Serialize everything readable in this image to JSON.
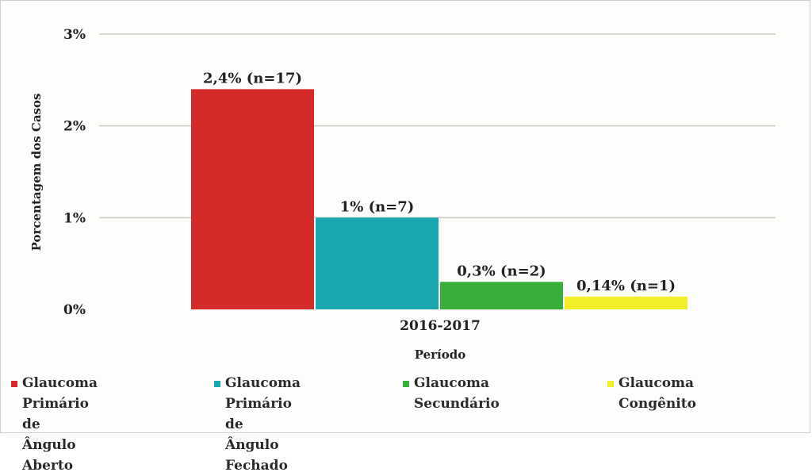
{
  "chart_data": {
    "type": "bar",
    "title": "",
    "ylabel": "Porcentagem dos Casos",
    "xlabel": "Período",
    "categories": [
      "2016-2017"
    ],
    "ylim": [
      0,
      3
    ],
    "yticks": [
      "0%",
      "1%",
      "2%",
      "3%"
    ],
    "grid": true,
    "legend_position": "bottom",
    "series": [
      {
        "name": "Glaucoma Primário de Ângulo Aberto",
        "values": [
          2.4
        ],
        "data_label": "2,4% (n=17)",
        "color": "#d42a2a"
      },
      {
        "name": "Glaucoma Primário de Ângulo Fechado",
        "values": [
          1.0
        ],
        "data_label": "1% (n=7)",
        "color": "#1aa8b0"
      },
      {
        "name": "Glaucoma Secundário",
        "values": [
          0.3
        ],
        "data_label": "0,3% (n=2)",
        "color": "#3aae3a"
      },
      {
        "name": "Glaucoma Congênito",
        "values": [
          0.14
        ],
        "data_label": "0,14% (n=1)",
        "color": "#f2ee2a"
      }
    ]
  },
  "legend": [
    {
      "label": "Glaucoma Primário\nde Ângulo Aberto",
      "color": "#d42a2a"
    },
    {
      "label": "Glaucoma Primário\nde Ângulo Fechado",
      "color": "#1aa8b0"
    },
    {
      "label": "Glaucoma Secundário",
      "color": "#3aae3a"
    },
    {
      "label": "Glaucoma Congênito",
      "color": "#f2ee2a"
    }
  ]
}
